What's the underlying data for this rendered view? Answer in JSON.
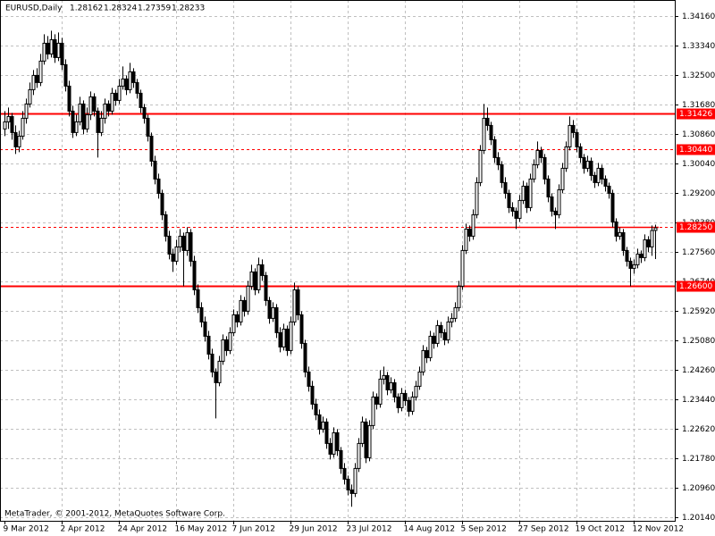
{
  "chart_data": {
    "type": "candlestick",
    "title": "EURUSD,Daily",
    "footer": "MetaTrader, © 2001-2012, MetaQuotes Software Corp.",
    "grid": true,
    "bull_fill": "#ffffff",
    "bear_fill": "#000000",
    "line_color": "#000000",
    "ylim": [
      1.20035,
      1.3461
    ],
    "yticks": [
      {
        "value": 1.3416,
        "label": "1.34160"
      },
      {
        "value": 1.3334,
        "label": "1.33340"
      },
      {
        "value": 1.325,
        "label": "1.32500"
      },
      {
        "value": 1.3168,
        "label": "1.31680"
      },
      {
        "value": 1.3086,
        "label": "1.30860"
      },
      {
        "value": 1.3004,
        "label": "1.30040"
      },
      {
        "value": 1.292,
        "label": "1.29200"
      },
      {
        "value": 1.2838,
        "label": "1.28380"
      },
      {
        "value": 1.2756,
        "label": "1.27560"
      },
      {
        "value": 1.2674,
        "label": "1.26740"
      },
      {
        "value": 1.2592,
        "label": "1.25920"
      },
      {
        "value": 1.2508,
        "label": "1.25080"
      },
      {
        "value": 1.2426,
        "label": "1.24260"
      },
      {
        "value": 1.2344,
        "label": "1.23440"
      },
      {
        "value": 1.2262,
        "label": "1.22620"
      },
      {
        "value": 1.2178,
        "label": "1.21780"
      },
      {
        "value": 1.2096,
        "label": "1.20960"
      },
      {
        "value": 1.2014,
        "label": "1.20140"
      }
    ],
    "xticks": [
      {
        "value": 0,
        "label": "9 Mar 2012"
      },
      {
        "value": 16,
        "label": "2 Apr 2012"
      },
      {
        "value": 32,
        "label": "24 Apr 2012"
      },
      {
        "value": 48,
        "label": "16 May 2012"
      },
      {
        "value": 64,
        "label": "7 Jun 2012"
      },
      {
        "value": 80,
        "label": "29 Jun 2012"
      },
      {
        "value": 96,
        "label": "23 Jul 2012"
      },
      {
        "value": 112,
        "label": "14 Aug 2012"
      },
      {
        "value": 128,
        "label": "5 Sep 2012"
      },
      {
        "value": 144,
        "label": "27 Sep 2012"
      },
      {
        "value": 160,
        "label": "19 Oct 2012"
      },
      {
        "value": 176,
        "label": "12 Nov 2012"
      }
    ],
    "levels": [
      {
        "value": 1.31426,
        "color": "#ff0000",
        "style": "solid"
      },
      {
        "value": 1.3044,
        "label": "1.30440",
        "color": "#ff0000",
        "style": "dashed"
      },
      {
        "value": 1.2825,
        "label": "1.28250",
        "color": "#ff0000",
        "style": "dashed"
      },
      {
        "value": 1.266,
        "label": "1.26600",
        "color": "#ff0000",
        "style": "solid"
      }
    ],
    "candles": [
      [
        1.31,
        1.315,
        1.308,
        1.312
      ],
      [
        1.312,
        1.316,
        1.31,
        1.3135
      ],
      [
        1.3135,
        1.3145,
        1.307,
        1.309
      ],
      [
        1.309,
        1.311,
        1.303,
        1.305
      ],
      [
        1.305,
        1.3095,
        1.3035,
        1.308
      ],
      [
        1.308,
        1.315,
        1.307,
        1.313
      ],
      [
        1.313,
        1.3185,
        1.3115,
        1.317
      ],
      [
        1.317,
        1.323,
        1.316,
        1.321
      ],
      [
        1.321,
        1.3265,
        1.3195,
        1.325
      ],
      [
        1.325,
        1.327,
        1.3215,
        1.323
      ],
      [
        1.323,
        1.331,
        1.322,
        1.329
      ],
      [
        1.329,
        1.3365,
        1.328,
        1.334
      ],
      [
        1.334,
        1.336,
        1.3295,
        1.331
      ],
      [
        1.331,
        1.3375,
        1.33,
        1.335
      ],
      [
        1.335,
        1.3365,
        1.3285,
        1.33
      ],
      [
        1.33,
        1.337,
        1.329,
        1.334
      ],
      [
        1.334,
        1.3355,
        1.3265,
        1.328
      ],
      [
        1.328,
        1.3295,
        1.3205,
        1.322
      ],
      [
        1.322,
        1.3235,
        1.3135,
        1.315
      ],
      [
        1.315,
        1.3165,
        1.3075,
        1.309
      ],
      [
        1.309,
        1.314,
        1.308,
        1.312
      ],
      [
        1.312,
        1.319,
        1.311,
        1.317
      ],
      [
        1.317,
        1.318,
        1.3085,
        1.31
      ],
      [
        1.31,
        1.316,
        1.309,
        1.314
      ],
      [
        1.314,
        1.3205,
        1.3125,
        1.319
      ],
      [
        1.319,
        1.32,
        1.3135,
        1.315
      ],
      [
        1.315,
        1.316,
        1.302,
        1.309
      ],
      [
        1.309,
        1.315,
        1.308,
        1.313
      ],
      [
        1.313,
        1.3185,
        1.3115,
        1.317
      ],
      [
        1.317,
        1.318,
        1.3135,
        1.315
      ],
      [
        1.315,
        1.3215,
        1.314,
        1.32
      ],
      [
        1.32,
        1.321,
        1.3165,
        1.318
      ],
      [
        1.318,
        1.324,
        1.317,
        1.322
      ],
      [
        1.322,
        1.3275,
        1.321,
        1.324
      ],
      [
        1.324,
        1.325,
        1.3195,
        1.321
      ],
      [
        1.321,
        1.3285,
        1.32,
        1.326
      ],
      [
        1.326,
        1.327,
        1.3215,
        1.323
      ],
      [
        1.323,
        1.324,
        1.3185,
        1.32
      ],
      [
        1.32,
        1.321,
        1.3145,
        1.316
      ],
      [
        1.316,
        1.317,
        1.3115,
        1.313
      ],
      [
        1.313,
        1.314,
        1.3065,
        1.308
      ],
      [
        1.308,
        1.309,
        1.2995,
        1.301
      ],
      [
        1.301,
        1.3025,
        1.2945,
        1.296
      ],
      [
        1.296,
        1.2975,
        1.2905,
        1.292
      ],
      [
        1.292,
        1.293,
        1.2845,
        1.286
      ],
      [
        1.286,
        1.287,
        1.2785,
        1.28
      ],
      [
        1.28,
        1.2815,
        1.2735,
        1.275
      ],
      [
        1.275,
        1.2765,
        1.27,
        1.273
      ],
      [
        1.273,
        1.279,
        1.272,
        1.277
      ],
      [
        1.277,
        1.282,
        1.2755,
        1.28
      ],
      [
        1.28,
        1.281,
        1.266,
        1.276
      ],
      [
        1.276,
        1.2825,
        1.2745,
        1.281
      ],
      [
        1.281,
        1.282,
        1.2715,
        1.273
      ],
      [
        1.273,
        1.2745,
        1.2635,
        1.265
      ],
      [
        1.265,
        1.2665,
        1.2585,
        1.26
      ],
      [
        1.26,
        1.2615,
        1.2545,
        1.256
      ],
      [
        1.256,
        1.2575,
        1.2505,
        1.252
      ],
      [
        1.252,
        1.2535,
        1.2455,
        1.247
      ],
      [
        1.247,
        1.2485,
        1.2405,
        1.242
      ],
      [
        1.242,
        1.243,
        1.229,
        1.239
      ],
      [
        1.239,
        1.2465,
        1.238,
        1.245
      ],
      [
        1.245,
        1.2525,
        1.244,
        1.251
      ],
      [
        1.251,
        1.252,
        1.2465,
        1.248
      ],
      [
        1.248,
        1.2545,
        1.247,
        1.253
      ],
      [
        1.253,
        1.2595,
        1.252,
        1.258
      ],
      [
        1.258,
        1.259,
        1.2545,
        1.256
      ],
      [
        1.256,
        1.2635,
        1.255,
        1.262
      ],
      [
        1.262,
        1.263,
        1.2575,
        1.259
      ],
      [
        1.259,
        1.2675,
        1.258,
        1.266
      ],
      [
        1.266,
        1.272,
        1.265,
        1.27
      ],
      [
        1.27,
        1.271,
        1.2635,
        1.265
      ],
      [
        1.265,
        1.274,
        1.264,
        1.272
      ],
      [
        1.272,
        1.2735,
        1.2675,
        1.269
      ],
      [
        1.269,
        1.27,
        1.2605,
        1.262
      ],
      [
        1.262,
        1.263,
        1.2555,
        1.257
      ],
      [
        1.257,
        1.2615,
        1.256,
        1.26
      ],
      [
        1.26,
        1.261,
        1.2515,
        1.253
      ],
      [
        1.253,
        1.2545,
        1.2475,
        1.249
      ],
      [
        1.249,
        1.2555,
        1.248,
        1.254
      ],
      [
        1.254,
        1.255,
        1.2465,
        1.248
      ],
      [
        1.248,
        1.2575,
        1.247,
        1.256
      ],
      [
        1.256,
        1.267,
        1.255,
        1.265
      ],
      [
        1.265,
        1.266,
        1.2565,
        1.258
      ],
      [
        1.258,
        1.259,
        1.2485,
        1.25
      ],
      [
        1.25,
        1.251,
        1.2405,
        1.242
      ],
      [
        1.242,
        1.2435,
        1.2365,
        1.238
      ],
      [
        1.238,
        1.2395,
        1.2315,
        1.233
      ],
      [
        1.233,
        1.2345,
        1.2285,
        1.23
      ],
      [
        1.23,
        1.2315,
        1.2245,
        1.226
      ],
      [
        1.226,
        1.2295,
        1.225,
        1.228
      ],
      [
        1.228,
        1.229,
        1.2205,
        1.222
      ],
      [
        1.222,
        1.2235,
        1.2175,
        1.219
      ],
      [
        1.219,
        1.2265,
        1.218,
        1.225
      ],
      [
        1.225,
        1.226,
        1.2185,
        1.22
      ],
      [
        1.22,
        1.221,
        1.2135,
        1.215
      ],
      [
        1.215,
        1.2165,
        1.2105,
        1.212
      ],
      [
        1.212,
        1.213,
        1.2075,
        1.209
      ],
      [
        1.209,
        1.2105,
        1.2043,
        1.208
      ],
      [
        1.208,
        1.2165,
        1.207,
        1.215
      ],
      [
        1.215,
        1.2235,
        1.214,
        1.222
      ],
      [
        1.222,
        1.2295,
        1.221,
        1.228
      ],
      [
        1.228,
        1.229,
        1.2165,
        1.218
      ],
      [
        1.218,
        1.2285,
        1.217,
        1.227
      ],
      [
        1.227,
        1.2365,
        1.226,
        1.235
      ],
      [
        1.235,
        1.236,
        1.2315,
        1.233
      ],
      [
        1.233,
        1.2425,
        1.232,
        1.24
      ],
      [
        1.24,
        1.2435,
        1.2385,
        1.241
      ],
      [
        1.241,
        1.242,
        1.2355,
        1.237
      ],
      [
        1.237,
        1.2405,
        1.236,
        1.239
      ],
      [
        1.239,
        1.24,
        1.2335,
        1.235
      ],
      [
        1.235,
        1.236,
        1.2305,
        1.232
      ],
      [
        1.232,
        1.2375,
        1.231,
        1.236
      ],
      [
        1.236,
        1.237,
        1.2325,
        1.234
      ],
      [
        1.234,
        1.235,
        1.2295,
        1.231
      ],
      [
        1.231,
        1.2365,
        1.23,
        1.235
      ],
      [
        1.235,
        1.2395,
        1.234,
        1.238
      ],
      [
        1.238,
        1.2435,
        1.237,
        1.242
      ],
      [
        1.242,
        1.2495,
        1.241,
        1.248
      ],
      [
        1.248,
        1.249,
        1.2445,
        1.246
      ],
      [
        1.246,
        1.2535,
        1.245,
        1.252
      ],
      [
        1.252,
        1.253,
        1.2485,
        1.25
      ],
      [
        1.25,
        1.2565,
        1.249,
        1.255
      ],
      [
        1.255,
        1.256,
        1.2515,
        1.253
      ],
      [
        1.253,
        1.254,
        1.2495,
        1.251
      ],
      [
        1.251,
        1.2575,
        1.25,
        1.256
      ],
      [
        1.256,
        1.2585,
        1.2545,
        1.257
      ],
      [
        1.257,
        1.2615,
        1.256,
        1.26
      ],
      [
        1.26,
        1.2675,
        1.259,
        1.266
      ],
      [
        1.266,
        1.2775,
        1.265,
        1.276
      ],
      [
        1.276,
        1.2835,
        1.275,
        1.282
      ],
      [
        1.282,
        1.283,
        1.2785,
        1.28
      ],
      [
        1.28,
        1.2875,
        1.279,
        1.286
      ],
      [
        1.286,
        1.2965,
        1.285,
        1.295
      ],
      [
        1.295,
        1.3055,
        1.294,
        1.304
      ],
      [
        1.304,
        1.317,
        1.303,
        1.313
      ],
      [
        1.313,
        1.316,
        1.3095,
        1.311
      ],
      [
        1.311,
        1.312,
        1.3055,
        1.307
      ],
      [
        1.307,
        1.308,
        1.3005,
        1.302
      ],
      [
        1.302,
        1.3035,
        1.2985,
        1.3
      ],
      [
        1.3,
        1.301,
        1.2935,
        1.295
      ],
      [
        1.295,
        1.2965,
        1.2905,
        1.292
      ],
      [
        1.292,
        1.293,
        1.2865,
        1.288
      ],
      [
        1.288,
        1.2895,
        1.2855,
        1.287
      ],
      [
        1.287,
        1.288,
        1.282,
        1.285
      ],
      [
        1.285,
        1.2915,
        1.284,
        1.29
      ],
      [
        1.29,
        1.2955,
        1.289,
        1.294
      ],
      [
        1.294,
        1.295,
        1.2865,
        1.288
      ],
      [
        1.288,
        1.2975,
        1.287,
        1.296
      ],
      [
        1.296,
        1.3015,
        1.295,
        1.3
      ],
      [
        1.3,
        1.3065,
        1.299,
        1.304
      ],
      [
        1.304,
        1.305,
        1.3005,
        1.302
      ],
      [
        1.302,
        1.303,
        1.2945,
        1.296
      ],
      [
        1.296,
        1.297,
        1.2895,
        1.291
      ],
      [
        1.291,
        1.292,
        1.2855,
        1.287
      ],
      [
        1.287,
        1.288,
        1.282,
        1.286
      ],
      [
        1.286,
        1.2945,
        1.285,
        1.293
      ],
      [
        1.293,
        1.3005,
        1.292,
        1.299
      ],
      [
        1.299,
        1.3065,
        1.298,
        1.305
      ],
      [
        1.305,
        1.3135,
        1.304,
        1.311
      ],
      [
        1.311,
        1.3125,
        1.3075,
        1.309
      ],
      [
        1.309,
        1.31,
        1.3035,
        1.305
      ],
      [
        1.305,
        1.306,
        1.3005,
        1.302
      ],
      [
        1.302,
        1.303,
        1.2975,
        1.299
      ],
      [
        1.299,
        1.3025,
        1.298,
        1.301
      ],
      [
        1.301,
        1.302,
        1.2955,
        1.297
      ],
      [
        1.297,
        1.298,
        1.2935,
        1.295
      ],
      [
        1.295,
        1.3005,
        1.294,
        1.299
      ],
      [
        1.299,
        1.3,
        1.2945,
        1.296
      ],
      [
        1.296,
        1.297,
        1.2925,
        1.294
      ],
      [
        1.294,
        1.295,
        1.2905,
        1.292
      ],
      [
        1.292,
        1.293,
        1.2825,
        1.284
      ],
      [
        1.284,
        1.285,
        1.2785,
        1.28
      ],
      [
        1.28,
        1.2825,
        1.279,
        1.281
      ],
      [
        1.281,
        1.282,
        1.2745,
        1.276
      ],
      [
        1.276,
        1.277,
        1.2715,
        1.273
      ],
      [
        1.273,
        1.274,
        1.266,
        1.271
      ],
      [
        1.271,
        1.2735,
        1.2695,
        1.272
      ],
      [
        1.272,
        1.2765,
        1.271,
        1.275
      ],
      [
        1.275,
        1.276,
        1.2725,
        1.274
      ],
      [
        1.274,
        1.2805,
        1.273,
        1.279
      ],
      [
        1.279,
        1.28,
        1.2755,
        1.277
      ],
      [
        1.277,
        1.283,
        1.2745,
        1.2816
      ],
      [
        1.28162,
        1.28324,
        1.27359,
        1.28233
      ]
    ]
  }
}
